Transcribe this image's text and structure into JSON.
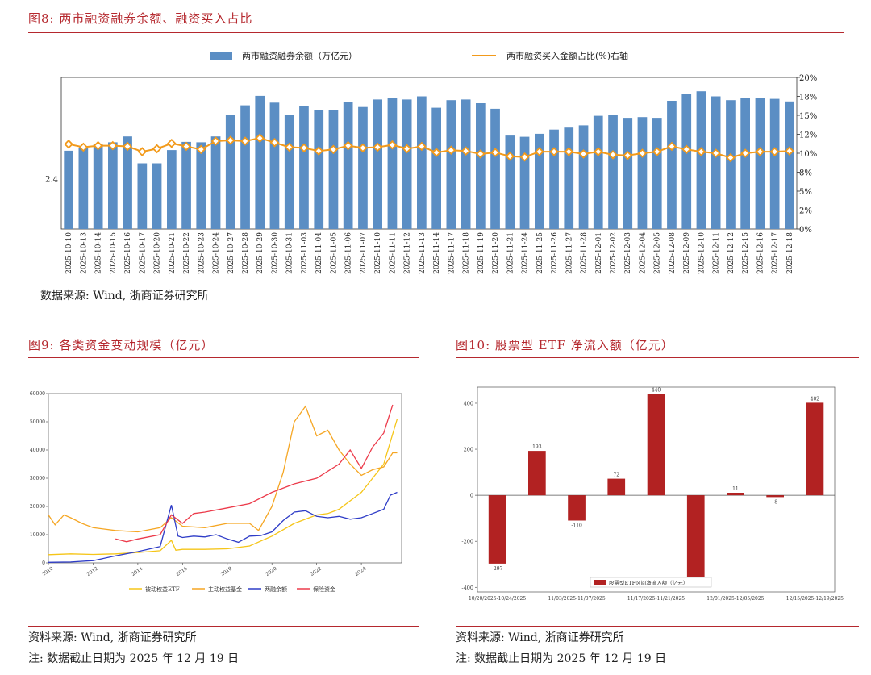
{
  "fig8": {
    "title": "图8:  两市融资融券余额、融资买入占比",
    "source": "数据来源: Wind, 浙商证券研究所",
    "chart_data": {
      "type": "bar+line",
      "title": "两市融资融券余额、融资买入占比",
      "left_axis_label": "2.4",
      "right_ticks": [
        "0%",
        "2%",
        "5%",
        "8%",
        "10%",
        "12%",
        "15%",
        "18%",
        "20%"
      ],
      "right_tick_values": [
        0,
        2.5,
        5,
        7.5,
        10,
        12.5,
        15,
        17.5,
        20
      ],
      "ylim_right": [
        0,
        20
      ],
      "categories": [
        "2025-10-10",
        "2025-10-13",
        "2025-10-14",
        "2025-10-15",
        "2025-10-16",
        "2025-10-17",
        "2025-10-20",
        "2025-10-21",
        "2025-10-22",
        "2025-10-23",
        "2025-10-24",
        "2025-10-27",
        "2025-10-28",
        "2025-10-29",
        "2025-10-30",
        "2025-10-31",
        "2025-11-03",
        "2025-11-04",
        "2025-11-05",
        "2025-11-06",
        "2025-11-07",
        "2025-11-10",
        "2025-11-11",
        "2025-11-12",
        "2025-11-13",
        "2025-11-14",
        "2025-11-17",
        "2025-11-18",
        "2025-11-19",
        "2025-11-20",
        "2025-11-21",
        "2025-11-24",
        "2025-11-25",
        "2025-11-26",
        "2025-11-27",
        "2025-11-28",
        "2025-12-01",
        "2025-12-02",
        "2025-12-03",
        "2025-12-04",
        "2025-12-05",
        "2025-12-08",
        "2025-12-09",
        "2025-12-10",
        "2025-12-11",
        "2025-12-12",
        "2025-12-15",
        "2025-12-16",
        "2025-12-17",
        "2025-12-18"
      ],
      "series": [
        {
          "name": "两市融资融券余额（万亿元）",
          "type": "bar",
          "color": "#5b8ec4",
          "values": [
            2.422,
            2.4244,
            2.427,
            2.4287,
            2.4333,
            2.412,
            2.412,
            2.4225,
            2.429,
            2.4287,
            2.4333,
            2.4502,
            2.4579,
            2.4654,
            2.46,
            2.45,
            2.457,
            2.4538,
            2.4538,
            2.4604,
            2.4566,
            2.4625,
            2.464,
            2.4625,
            2.465,
            2.456,
            2.462,
            2.4625,
            2.4596,
            2.4552,
            2.434,
            2.433,
            2.4354,
            2.4387,
            2.4403,
            2.4421,
            2.4496,
            2.4506,
            2.448,
            2.4486,
            2.448,
            2.4615,
            2.467,
            2.469,
            2.465,
            2.462,
            2.4638,
            2.4636,
            2.463,
            2.461
          ]
        },
        {
          "name": "两市融资买入金额占比(%)右轴",
          "type": "line",
          "color": "#f29a1b",
          "values": [
            11.2,
            10.8,
            11.0,
            11.0,
            10.9,
            10.2,
            10.6,
            11.3,
            10.9,
            10.5,
            11.6,
            11.7,
            11.6,
            12.0,
            11.4,
            10.8,
            10.7,
            10.3,
            10.5,
            11.0,
            10.7,
            10.8,
            11.1,
            10.6,
            10.9,
            10.1,
            10.4,
            10.3,
            9.9,
            10.1,
            9.6,
            9.5,
            10.2,
            10.2,
            10.2,
            9.9,
            10.2,
            9.8,
            9.7,
            10.0,
            10.2,
            10.9,
            10.5,
            10.2,
            10.0,
            9.4,
            10.0,
            10.2,
            10.2,
            10.3
          ]
        }
      ],
      "ylim_left": [
        2.36,
        2.48
      ]
    }
  },
  "fig9": {
    "title": "图9:  各类资金变动规模（亿元）",
    "source": "资料来源: Wind, 浙商证券研究所",
    "footnote": "注: 数据截止日期为 2025 年 12 月 19 日",
    "chart_data": {
      "type": "line",
      "ylim": [
        0,
        60000
      ],
      "y_ticks": [
        "0",
        "10000",
        "20000",
        "30000",
        "40000",
        "50000",
        "60000"
      ],
      "y_tick_values": [
        0,
        10000,
        20000,
        30000,
        40000,
        50000,
        60000
      ],
      "xlim": [
        2010,
        2025.8
      ],
      "x_ticks": [
        "2010",
        "2012",
        "2014",
        "2016",
        "2018",
        "2020",
        "2022",
        "2024"
      ],
      "x_tick_values": [
        2010,
        2012,
        2014,
        2016,
        2018,
        2020,
        2022,
        2024
      ],
      "series": [
        {
          "name": "被动权益ETF",
          "color": "#f5c518",
          "points": [
            [
              2010,
              2900
            ],
            [
              2011,
              3200
            ],
            [
              2012,
              3000
            ],
            [
              2013,
              3200
            ],
            [
              2014,
              3700
            ],
            [
              2015,
              4300
            ],
            [
              2015.5,
              8000
            ],
            [
              2015.7,
              4500
            ],
            [
              2016,
              4800
            ],
            [
              2017,
              4800
            ],
            [
              2018,
              5000
            ],
            [
              2019,
              6000
            ],
            [
              2020,
              9500
            ],
            [
              2021,
              14000
            ],
            [
              2022,
              17000
            ],
            [
              2022.5,
              17500
            ],
            [
              2023,
              19000
            ],
            [
              2023.5,
              22000
            ],
            [
              2024,
              25000
            ],
            [
              2024.5,
              30000
            ],
            [
              2025,
              35000
            ],
            [
              2025.3,
              43000
            ],
            [
              2025.6,
              51000
            ]
          ]
        },
        {
          "name": "主动权益基金",
          "color": "#f5a623",
          "points": [
            [
              2010,
              17000
            ],
            [
              2010.3,
              13500
            ],
            [
              2010.7,
              17000
            ],
            [
              2011,
              16000
            ],
            [
              2011.5,
              14000
            ],
            [
              2012,
              12500
            ],
            [
              2013,
              11500
            ],
            [
              2014,
              11000
            ],
            [
              2015,
              12500
            ],
            [
              2015.5,
              16000
            ],
            [
              2016,
              13000
            ],
            [
              2017,
              12500
            ],
            [
              2018,
              14000
            ],
            [
              2019,
              14000
            ],
            [
              2019.4,
              11500
            ],
            [
              2020,
              20000
            ],
            [
              2020.5,
              32000
            ],
            [
              2021,
              50000
            ],
            [
              2021.5,
              55500
            ],
            [
              2022,
              45000
            ],
            [
              2022.5,
              47000
            ],
            [
              2023,
              40000
            ],
            [
              2023.5,
              35000
            ],
            [
              2024,
              31000
            ],
            [
              2024.5,
              33000
            ],
            [
              2025,
              34000
            ],
            [
              2025.4,
              39000
            ],
            [
              2025.6,
              39000
            ]
          ]
        },
        {
          "name": "两融余额",
          "color": "#2e3cc7",
          "points": [
            [
              2010,
              200
            ],
            [
              2011,
              300
            ],
            [
              2012,
              800
            ],
            [
              2013,
              2500
            ],
            [
              2014,
              4000
            ],
            [
              2015,
              5800
            ],
            [
              2015.5,
              20500
            ],
            [
              2015.8,
              9500
            ],
            [
              2016,
              9000
            ],
            [
              2016.5,
              9500
            ],
            [
              2017,
              9200
            ],
            [
              2017.5,
              10000
            ],
            [
              2018,
              8500
            ],
            [
              2018.5,
              7300
            ],
            [
              2019,
              9500
            ],
            [
              2019.5,
              9700
            ],
            [
              2020,
              11000
            ],
            [
              2020.5,
              15000
            ],
            [
              2021,
              18000
            ],
            [
              2021.5,
              18500
            ],
            [
              2022,
              16500
            ],
            [
              2022.5,
              16000
            ],
            [
              2023,
              16500
            ],
            [
              2023.5,
              15500
            ],
            [
              2024,
              16000
            ],
            [
              2024.5,
              17500
            ],
            [
              2025,
              19000
            ],
            [
              2025.3,
              24000
            ],
            [
              2025.6,
              25000
            ]
          ]
        },
        {
          "name": "保险资金",
          "color": "#ec3b4b",
          "points": [
            [
              2013,
              8500
            ],
            [
              2013.5,
              7500
            ],
            [
              2014,
              8500
            ],
            [
              2015,
              10000
            ],
            [
              2015.5,
              17000
            ],
            [
              2016,
              14000
            ],
            [
              2016.5,
              17500
            ],
            [
              2017,
              18000
            ],
            [
              2018,
              19500
            ],
            [
              2019,
              21000
            ],
            [
              2020,
              25000
            ],
            [
              2021,
              28000
            ],
            [
              2022,
              30000
            ],
            [
              2023,
              35000
            ],
            [
              2023.5,
              40000
            ],
            [
              2024,
              33500
            ],
            [
              2024.5,
              41000
            ],
            [
              2025,
              46000
            ],
            [
              2025.4,
              56000
            ]
          ]
        }
      ]
    }
  },
  "fig10": {
    "title": "图10:  股票型 ETF 净流入额（亿元）",
    "source": "资料来源: Wind, 浙商证券研究所",
    "footnote": "注: 数据截止日期为 2025 年 12 月 19 日",
    "chart_data": {
      "type": "bar",
      "legend": "股票型ETF区间净流入额（亿元）",
      "color": "#b22222",
      "ylim": [
        -420,
        470
      ],
      "y_ticks": [
        "-400",
        "-200",
        "0",
        "200",
        "400"
      ],
      "y_tick_values": [
        -400,
        -200,
        0,
        200,
        400
      ],
      "values": [
        -297,
        193,
        -110,
        72,
        440,
        -370,
        11,
        -8,
        402
      ],
      "labels": [
        "-297",
        "193",
        "-110",
        "72",
        "440",
        "",
        "11",
        "-8",
        "402"
      ],
      "x_ticks": [
        "10/20/2025-10/24/2025",
        "11/03/2025-11/07/2025",
        "11/17/2025-11/21/2025",
        "12/01/2025-12/05/2025",
        "12/15/2025-12/19/2025"
      ]
    }
  }
}
